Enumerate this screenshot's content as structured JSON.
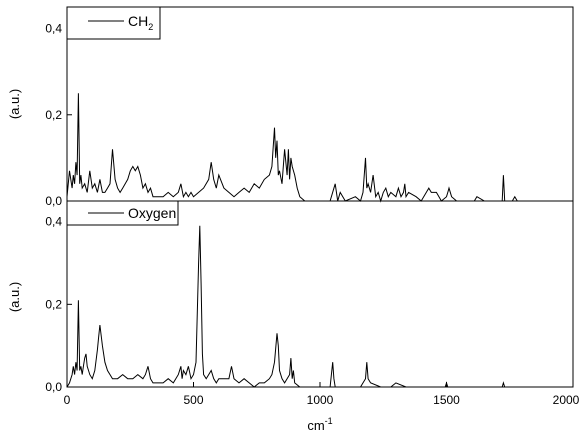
{
  "chart_data": [
    {
      "type": "line",
      "panel": "top",
      "ylabel": "(a.u.)",
      "ylim": [
        0,
        0.45
      ],
      "yticks": [
        0.0,
        0.2,
        0.4
      ],
      "ytick_labels": [
        "0,0",
        "0,2",
        "0,4"
      ],
      "xlim": [
        0,
        2000
      ],
      "series": [
        {
          "name": "CH",
          "name_subscript": "2",
          "color": "#000000",
          "x": [
            0,
            10,
            20,
            25,
            30,
            35,
            40,
            45,
            50,
            55,
            60,
            70,
            80,
            90,
            100,
            110,
            120,
            130,
            140,
            150,
            160,
            170,
            180,
            190,
            200,
            210,
            220,
            230,
            240,
            250,
            260,
            270,
            280,
            290,
            300,
            310,
            320,
            330,
            340,
            350,
            380,
            400,
            420,
            440,
            450,
            460,
            470,
            480,
            490,
            500,
            520,
            540,
            560,
            570,
            580,
            590,
            600,
            620,
            640,
            660,
            680,
            700,
            720,
            740,
            760,
            780,
            800,
            810,
            820,
            825,
            830,
            835,
            840,
            850,
            860,
            870,
            875,
            880,
            885,
            890,
            900,
            910,
            920,
            940,
            960,
            980,
            1000,
            1040,
            1060,
            1070,
            1080,
            1100,
            1140,
            1160,
            1170,
            1180,
            1185,
            1190,
            1200,
            1210,
            1220,
            1230,
            1240,
            1250,
            1260,
            1270,
            1280,
            1300,
            1310,
            1320,
            1330,
            1335,
            1340,
            1350,
            1380,
            1400,
            1420,
            1430,
            1440,
            1460,
            1480,
            1500,
            1505,
            1510,
            1520,
            1540,
            1580,
            1600,
            1610,
            1620,
            1650,
            1700,
            1720,
            1725,
            1730,
            1740,
            1760,
            1770,
            1780,
            1800,
            1850,
            1900,
            1950,
            2000
          ],
          "y": [
            0.01,
            0.07,
            0.03,
            0.06,
            0.04,
            0.09,
            0.06,
            0.25,
            0.04,
            0.06,
            0.03,
            0.04,
            0.02,
            0.07,
            0.03,
            0.04,
            0.02,
            0.05,
            0.02,
            0.02,
            0.03,
            0.04,
            0.12,
            0.05,
            0.03,
            0.02,
            0.03,
            0.04,
            0.05,
            0.07,
            0.08,
            0.07,
            0.08,
            0.06,
            0.03,
            0.04,
            0.02,
            0.03,
            0.01,
            0.01,
            0.01,
            0.02,
            0.01,
            0.02,
            0.04,
            0.01,
            0.02,
            0.01,
            0.02,
            0.01,
            0.02,
            0.03,
            0.05,
            0.09,
            0.05,
            0.03,
            0.06,
            0.03,
            0.02,
            0.01,
            0.02,
            0.03,
            0.02,
            0.04,
            0.03,
            0.05,
            0.06,
            0.08,
            0.17,
            0.1,
            0.14,
            0.06,
            0.07,
            0.04,
            0.12,
            0.06,
            0.12,
            0.05,
            0.1,
            0.08,
            0.06,
            0.03,
            0.01,
            0.0,
            0.0,
            0.0,
            0.0,
            0.0,
            0.04,
            0.0,
            0.02,
            0.0,
            0.01,
            0.0,
            0.02,
            0.1,
            0.03,
            0.04,
            0.02,
            0.06,
            0.01,
            0.02,
            0.0,
            0.02,
            0.03,
            0.01,
            0.02,
            0.01,
            0.03,
            0.01,
            0.02,
            0.04,
            0.01,
            0.02,
            0.01,
            0.0,
            0.02,
            0.03,
            0.02,
            0.02,
            0.0,
            0.01,
            0.02,
            0.03,
            0.01,
            0.0,
            0.0,
            0.0,
            0.0,
            0.01,
            0.0,
            0.0,
            0.0,
            0.06,
            0.0,
            0.0,
            0.0,
            0.01,
            0.0,
            0.0,
            0.0,
            0.0,
            0.0,
            0.0
          ]
        }
      ]
    },
    {
      "type": "line",
      "panel": "bottom",
      "xlabel": "cm",
      "xlabel_superscript": "-1",
      "ylabel": "(a.u.)",
      "xlim": [
        0,
        2000
      ],
      "xticks": [
        0,
        500,
        1000,
        1500,
        2000
      ],
      "xtick_labels": [
        "0",
        "500",
        "1000",
        "1500",
        "2000"
      ],
      "ylim": [
        0,
        0.45
      ],
      "yticks": [
        0.0,
        0.2,
        0.4
      ],
      "ytick_labels": [
        "0,0",
        "0,2",
        "0,4"
      ],
      "series": [
        {
          "name": "Oxygen",
          "color": "#000000",
          "x": [
            0,
            10,
            20,
            25,
            30,
            35,
            40,
            45,
            50,
            55,
            60,
            65,
            70,
            75,
            80,
            90,
            100,
            110,
            120,
            125,
            130,
            140,
            150,
            160,
            170,
            180,
            200,
            220,
            240,
            260,
            280,
            300,
            310,
            320,
            330,
            340,
            360,
            380,
            400,
            420,
            440,
            450,
            455,
            460,
            470,
            480,
            490,
            500,
            510,
            520,
            525,
            530,
            535,
            540,
            550,
            560,
            570,
            580,
            590,
            600,
            620,
            640,
            650,
            660,
            680,
            700,
            720,
            740,
            760,
            780,
            800,
            810,
            820,
            830,
            835,
            840,
            850,
            860,
            870,
            880,
            885,
            890,
            895,
            900,
            920,
            940,
            960,
            980,
            1000,
            1040,
            1045,
            1050,
            1055,
            1060,
            1080,
            1100,
            1140,
            1160,
            1170,
            1180,
            1185,
            1190,
            1200,
            1240,
            1260,
            1280,
            1300,
            1340,
            1380,
            1400,
            1450,
            1495,
            1500,
            1505,
            1510,
            1550,
            1600,
            1650,
            1700,
            1720,
            1725,
            1730,
            1750,
            1800,
            1850,
            1900,
            1950,
            2000
          ],
          "y": [
            0.0,
            0.01,
            0.03,
            0.05,
            0.03,
            0.06,
            0.04,
            0.21,
            0.04,
            0.05,
            0.03,
            0.05,
            0.07,
            0.08,
            0.05,
            0.03,
            0.02,
            0.04,
            0.09,
            0.12,
            0.15,
            0.1,
            0.06,
            0.04,
            0.03,
            0.02,
            0.02,
            0.03,
            0.02,
            0.02,
            0.03,
            0.02,
            0.03,
            0.05,
            0.02,
            0.01,
            0.01,
            0.01,
            0.02,
            0.01,
            0.03,
            0.05,
            0.02,
            0.04,
            0.03,
            0.05,
            0.02,
            0.03,
            0.06,
            0.3,
            0.39,
            0.25,
            0.08,
            0.03,
            0.02,
            0.03,
            0.04,
            0.02,
            0.01,
            0.02,
            0.02,
            0.02,
            0.05,
            0.02,
            0.01,
            0.02,
            0.01,
            0.0,
            0.01,
            0.01,
            0.02,
            0.03,
            0.06,
            0.13,
            0.1,
            0.04,
            0.02,
            0.01,
            0.02,
            0.03,
            0.07,
            0.02,
            0.04,
            0.01,
            0.0,
            0.0,
            0.0,
            0.0,
            0.0,
            0.0,
            0.03,
            0.06,
            0.02,
            0.0,
            0.0,
            0.0,
            0.0,
            0.0,
            0.01,
            0.02,
            0.06,
            0.02,
            0.01,
            0.0,
            0.0,
            0.0,
            0.01,
            0.0,
            0.0,
            0.0,
            0.0,
            0.0,
            0.01,
            0.0,
            0.0,
            0.0,
            0.0,
            0.0,
            0.0,
            0.0,
            0.01,
            0.0,
            0.0,
            0.0,
            0.0,
            0.0,
            0.0,
            0.0
          ]
        }
      ]
    }
  ]
}
